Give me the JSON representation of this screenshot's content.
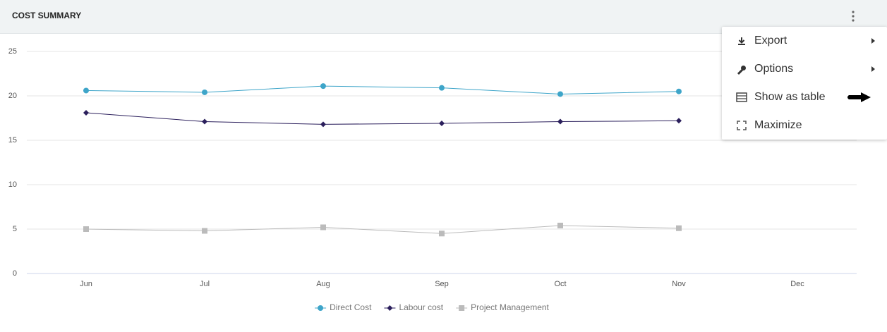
{
  "header": {
    "title": "COST SUMMARY"
  },
  "chart_data": {
    "type": "line",
    "categories": [
      "Jun",
      "Jul",
      "Aug",
      "Sep",
      "Oct",
      "Nov",
      "Dec"
    ],
    "series": [
      {
        "name": "Direct Cost",
        "color": "#3ea5c9",
        "marker": "circle",
        "values": [
          20.6,
          20.4,
          21.1,
          20.9,
          20.2,
          20.5,
          null
        ]
      },
      {
        "name": "Labour cost",
        "color": "#2b1f5c",
        "marker": "diamond",
        "values": [
          18.1,
          17.1,
          16.8,
          16.9,
          17.1,
          17.2,
          null
        ]
      },
      {
        "name": "Project Management",
        "color": "#bbbbbb",
        "marker": "square",
        "values": [
          5.0,
          4.8,
          5.2,
          4.5,
          5.4,
          5.1,
          null
        ]
      }
    ],
    "ylim": [
      0,
      25
    ],
    "yticks": [
      0,
      5,
      10,
      15,
      20,
      25
    ],
    "grid": true,
    "legend": "bottom"
  },
  "menu": {
    "items": [
      "Export",
      "Options",
      "Show as table",
      "Maximize"
    ]
  }
}
